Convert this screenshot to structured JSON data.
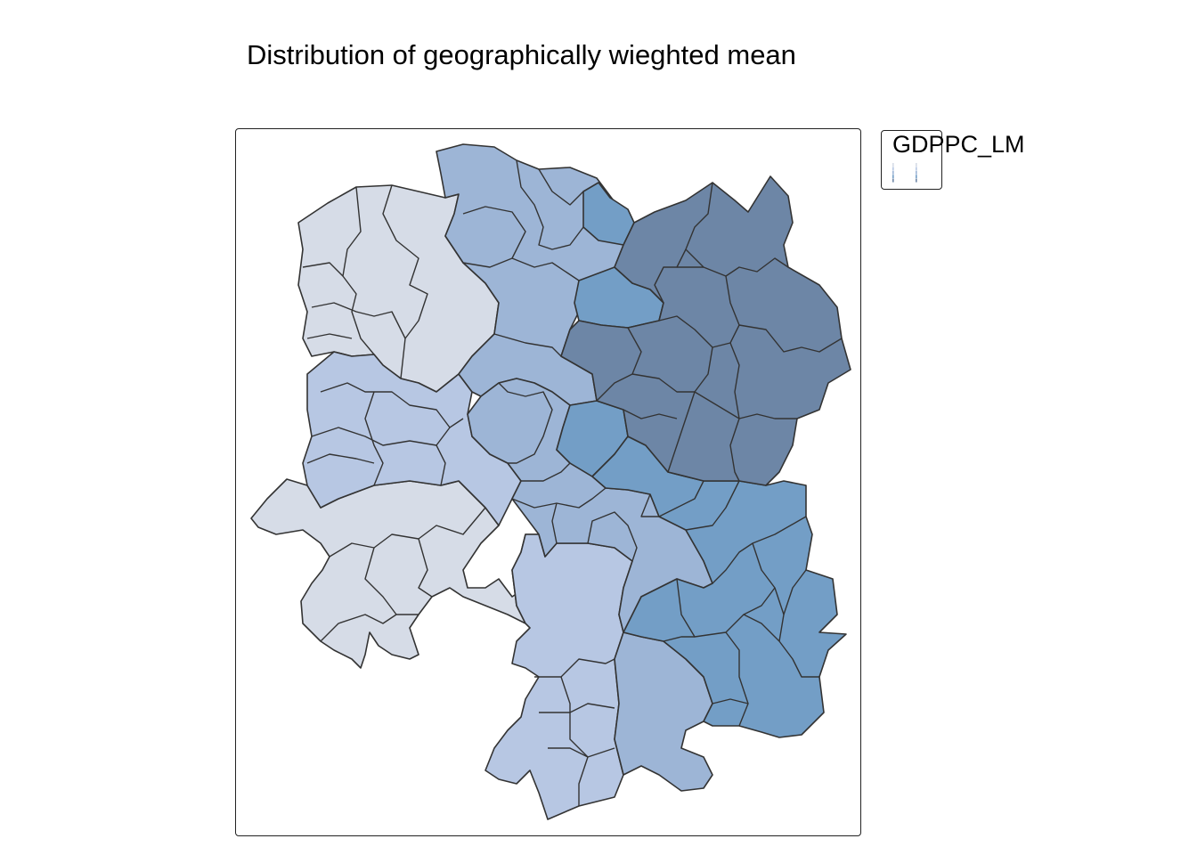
{
  "title": "Distribution of geographically wieghted mean",
  "legend": {
    "title": "GDPPC_LM",
    "classes": [
      "#d6dce7",
      "#b7c7e3",
      "#9db5d6",
      "#739ec6",
      "#6d86a6"
    ]
  },
  "map": {
    "type": "choropleth",
    "variable": "GDPPC_LM",
    "palette": {
      "c1": "#d6dce7",
      "c2": "#b7c7e3",
      "c3": "#9db5d6",
      "c4": "#739ec6",
      "c5": "#6d86a6"
    },
    "border_color": "#333333"
  }
}
